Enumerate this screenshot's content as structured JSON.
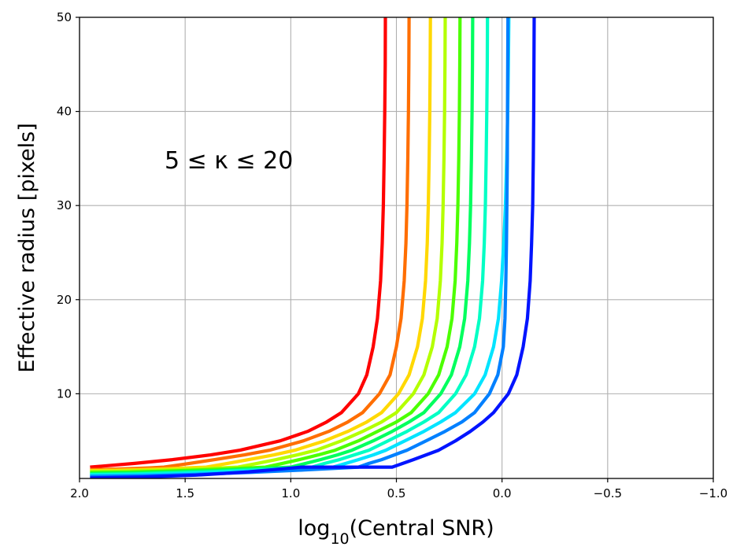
{
  "chart_data": {
    "type": "line",
    "xlabel": {
      "prefix": "log",
      "subscript": "10",
      "suffix": "(Central SNR)"
    },
    "ylabel": "Effective radius [pixels]",
    "annotation": "5 ≤ κ ≤ 20",
    "xlim": [
      2.0,
      -1.0
    ],
    "ylim": [
      1,
      50
    ],
    "x_inverted": true,
    "grid": true,
    "x_ticks": [
      {
        "value": 2.0,
        "label": "2.0"
      },
      {
        "value": 1.5,
        "label": "1.5"
      },
      {
        "value": 1.0,
        "label": "1.0"
      },
      {
        "value": 0.5,
        "label": "0.5"
      },
      {
        "value": 0.0,
        "label": "0.0"
      },
      {
        "value": -0.5,
        "label": "−0.5"
      },
      {
        "value": -1.0,
        "label": "−1.0"
      }
    ],
    "y_ticks": [
      {
        "value": 10,
        "label": "10"
      },
      {
        "value": 20,
        "label": "20"
      },
      {
        "value": 30,
        "label": "30"
      },
      {
        "value": 40,
        "label": "40"
      },
      {
        "value": 50,
        "label": "50"
      }
    ],
    "y_samples": [
      2.2,
      2.6,
      3.0,
      3.5,
      4.0,
      5.0,
      6.0,
      7.0,
      8.0,
      10.0,
      12.0,
      15.0,
      18.0,
      22.0,
      26.0,
      30.0,
      35.0,
      40.0,
      45.0,
      50.0
    ],
    "series": [
      {
        "color": "#ff0000",
        "x": [
          1.95,
          1.74,
          1.56,
          1.38,
          1.24,
          1.05,
          0.92,
          0.83,
          0.76,
          0.68,
          0.64,
          0.61,
          0.59,
          0.575,
          0.567,
          0.562,
          0.558,
          0.555,
          0.553,
          0.552
        ]
      },
      {
        "color": "#ff6e00",
        "x": [
          1.6,
          1.48,
          1.36,
          1.22,
          1.1,
          0.94,
          0.82,
          0.73,
          0.66,
          0.58,
          0.53,
          0.5,
          0.478,
          0.463,
          0.455,
          0.45,
          0.446,
          0.443,
          0.441,
          0.44
        ]
      },
      {
        "color": "#ffd800",
        "x": [
          1.4,
          1.3,
          1.2,
          1.08,
          0.98,
          0.84,
          0.73,
          0.64,
          0.57,
          0.49,
          0.44,
          0.4,
          0.377,
          0.362,
          0.354,
          0.349,
          0.345,
          0.342,
          0.34,
          0.339
        ]
      },
      {
        "color": "#b4ff00",
        "x": [
          1.25,
          1.16,
          1.07,
          0.97,
          0.88,
          0.76,
          0.66,
          0.57,
          0.5,
          0.42,
          0.37,
          0.33,
          0.307,
          0.292,
          0.284,
          0.279,
          0.275,
          0.272,
          0.27,
          0.269
        ]
      },
      {
        "color": "#4cff00",
        "x": [
          1.12,
          1.04,
          0.96,
          0.87,
          0.79,
          0.68,
          0.59,
          0.5,
          0.43,
          0.35,
          0.3,
          0.26,
          0.237,
          0.222,
          0.214,
          0.209,
          0.205,
          0.202,
          0.2,
          0.199
        ]
      },
      {
        "color": "#00ff5e",
        "x": [
          1.0,
          0.93,
          0.86,
          0.78,
          0.71,
          0.61,
          0.52,
          0.44,
          0.37,
          0.29,
          0.24,
          0.2,
          0.177,
          0.162,
          0.154,
          0.149,
          0.145,
          0.142,
          0.14,
          0.139
        ]
      },
      {
        "color": "#00ffc4",
        "x": [
          0.9,
          0.84,
          0.77,
          0.7,
          0.63,
          0.54,
          0.45,
          0.37,
          0.3,
          0.22,
          0.17,
          0.13,
          0.107,
          0.092,
          0.084,
          0.079,
          0.075,
          0.072,
          0.07,
          0.069
        ]
      },
      {
        "color": "#00e4ff",
        "x": [
          0.8,
          0.74,
          0.68,
          0.61,
          0.55,
          0.46,
          0.37,
          0.29,
          0.22,
          0.13,
          0.08,
          0.04,
          0.017,
          0.002,
          -0.008,
          -0.016,
          -0.022,
          -0.027,
          -0.03,
          -0.032
        ]
      },
      {
        "color": "#0080ff",
        "x": [
          0.68,
          0.63,
          0.57,
          0.51,
          0.45,
          0.36,
          0.27,
          0.19,
          0.13,
          0.06,
          0.02,
          -0.006,
          -0.014,
          -0.018,
          -0.021,
          -0.023,
          -0.025,
          -0.026,
          -0.027,
          -0.028
        ]
      },
      {
        "color": "#0014ff",
        "x": [
          0.52,
          0.47,
          0.42,
          0.36,
          0.3,
          0.22,
          0.15,
          0.09,
          0.04,
          -0.03,
          -0.07,
          -0.1,
          -0.12,
          -0.133,
          -0.14,
          -0.145,
          -0.148,
          -0.15,
          -0.151,
          -0.152
        ]
      }
    ],
    "blue_head": {
      "x": [
        1.95,
        1.7,
        1.45,
        1.2,
        0.95
      ],
      "y": [
        1.05,
        1.15,
        1.35,
        1.7,
        2.2
      ]
    }
  }
}
